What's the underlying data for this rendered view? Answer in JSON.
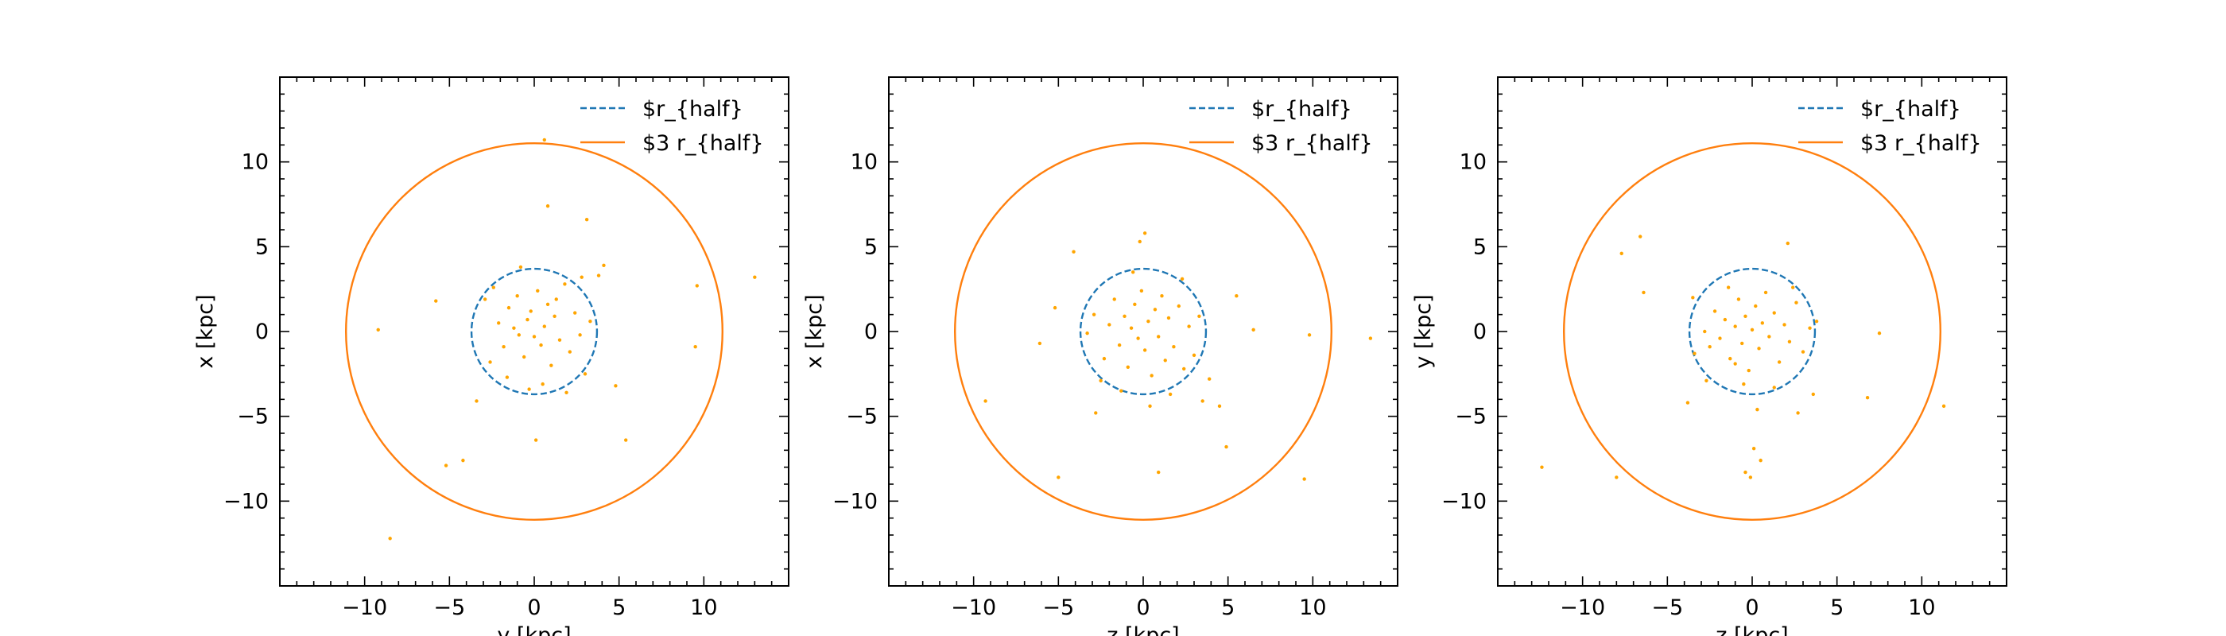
{
  "chart_data": [
    {
      "type": "scatter",
      "title": "",
      "xlabel": "y [kpc]",
      "ylabel": "x [kpc]",
      "xlim": [
        -15,
        15
      ],
      "ylim": [
        -15,
        15
      ],
      "xticks": [
        -10,
        -5,
        0,
        5,
        10
      ],
      "yticks": [
        -10,
        -5,
        0,
        5,
        10
      ],
      "xtick_labels": [
        "−10",
        "−5",
        "0",
        "5",
        "10"
      ],
      "ytick_labels": [
        "−10",
        "−5",
        "0",
        "5",
        "10"
      ],
      "circles": [
        {
          "label": "$r_{half}",
          "radius": 3.7,
          "color": "#1f77b4",
          "style": "dashed"
        },
        {
          "label": "$3 r_{half}",
          "radius": 11.1,
          "color": "#ff7f0e",
          "style": "solid"
        }
      ],
      "legend": {
        "loc": "upper right",
        "entries": [
          "$r_{half}",
          "$3 r_{half}"
        ]
      },
      "points_color": "#ffa500",
      "points": [
        [
          -9.2,
          0.1
        ],
        [
          -5.8,
          1.8
        ],
        [
          -5.2,
          -7.9
        ],
        [
          -4.2,
          -7.6
        ],
        [
          -8.5,
          -12.2
        ],
        [
          -3.4,
          -4.1
        ],
        [
          -2.9,
          1.9
        ],
        [
          -2.4,
          2.6
        ],
        [
          -2.1,
          0.5
        ],
        [
          -1.8,
          -0.9
        ],
        [
          -1.5,
          1.4
        ],
        [
          -1.2,
          0.2
        ],
        [
          -1.0,
          2.1
        ],
        [
          -0.8,
          3.8
        ],
        [
          -0.6,
          -1.5
        ],
        [
          -0.4,
          0.7
        ],
        [
          -0.2,
          1.2
        ],
        [
          0.0,
          -0.3
        ],
        [
          0.2,
          2.4
        ],
        [
          0.4,
          -0.8
        ],
        [
          0.6,
          0.3
        ],
        [
          0.8,
          1.6
        ],
        [
          1.0,
          -2.0
        ],
        [
          1.2,
          0.9
        ],
        [
          1.5,
          -0.5
        ],
        [
          1.8,
          2.8
        ],
        [
          2.1,
          -1.2
        ],
        [
          2.4,
          1.1
        ],
        [
          2.8,
          3.2
        ],
        [
          3.0,
          -2.5
        ],
        [
          3.3,
          0.6
        ],
        [
          0.5,
          -3.1
        ],
        [
          -0.3,
          -3.4
        ],
        [
          0.1,
          -6.4
        ],
        [
          3.8,
          3.3
        ],
        [
          4.1,
          3.9
        ],
        [
          4.8,
          -3.2
        ],
        [
          5.4,
          -6.4
        ],
        [
          9.5,
          -0.9
        ],
        [
          9.6,
          2.7
        ],
        [
          13.0,
          3.2
        ],
        [
          0.6,
          11.3
        ],
        [
          0.8,
          7.4
        ],
        [
          3.1,
          6.6
        ],
        [
          -1.6,
          -2.7
        ],
        [
          1.9,
          -3.6
        ],
        [
          -2.6,
          -1.8
        ],
        [
          2.7,
          -0.2
        ],
        [
          -0.9,
          -0.2
        ],
        [
          1.3,
          1.9
        ]
      ]
    },
    {
      "type": "scatter",
      "title": "",
      "xlabel": "z [kpc]",
      "ylabel": "x [kpc]",
      "xlim": [
        -15,
        15
      ],
      "ylim": [
        -15,
        15
      ],
      "xticks": [
        -10,
        -5,
        0,
        5,
        10
      ],
      "yticks": [
        -10,
        -5,
        0,
        5,
        10
      ],
      "xtick_labels": [
        "−10",
        "−5",
        "0",
        "5",
        "10"
      ],
      "ytick_labels": [
        "−10",
        "−5",
        "0",
        "5",
        "10"
      ],
      "circles": [
        {
          "label": "$r_{half}",
          "radius": 3.7,
          "color": "#1f77b4",
          "style": "dashed"
        },
        {
          "label": "$3 r_{half}",
          "radius": 11.1,
          "color": "#ff7f0e",
          "style": "solid"
        }
      ],
      "legend": {
        "loc": "upper right",
        "entries": [
          "$r_{half}",
          "$3 r_{half}"
        ]
      },
      "points_color": "#ffa500",
      "points": [
        [
          -9.3,
          -4.1
        ],
        [
          -6.1,
          -0.7
        ],
        [
          -5.2,
          1.4
        ],
        [
          -5.0,
          -8.6
        ],
        [
          -4.1,
          4.7
        ],
        [
          -2.8,
          -4.8
        ],
        [
          -2.9,
          1.0
        ],
        [
          -2.3,
          -1.6
        ],
        [
          -2.0,
          0.4
        ],
        [
          -1.7,
          1.9
        ],
        [
          -1.4,
          -0.8
        ],
        [
          -1.1,
          0.9
        ],
        [
          -0.9,
          -2.1
        ],
        [
          -0.7,
          0.2
        ],
        [
          -0.5,
          1.6
        ],
        [
          -0.3,
          -0.4
        ],
        [
          -0.1,
          2.4
        ],
        [
          0.1,
          -1.1
        ],
        [
          0.3,
          0.6
        ],
        [
          0.5,
          -2.6
        ],
        [
          0.7,
          1.3
        ],
        [
          0.9,
          -0.3
        ],
        [
          1.1,
          2.1
        ],
        [
          1.3,
          -1.7
        ],
        [
          1.5,
          0.8
        ],
        [
          1.8,
          -0.9
        ],
        [
          2.1,
          1.5
        ],
        [
          2.4,
          -2.2
        ],
        [
          2.7,
          0.3
        ],
        [
          3.0,
          -1.4
        ],
        [
          -0.2,
          5.3
        ],
        [
          0.1,
          5.8
        ],
        [
          0.9,
          -8.3
        ],
        [
          3.5,
          -4.1
        ],
        [
          3.9,
          -2.8
        ],
        [
          4.5,
          -4.4
        ],
        [
          4.9,
          -6.8
        ],
        [
          5.5,
          2.1
        ],
        [
          6.5,
          0.1
        ],
        [
          9.5,
          -8.7
        ],
        [
          9.8,
          -0.2
        ],
        [
          13.4,
          -0.4
        ],
        [
          -1.3,
          -3.5
        ],
        [
          1.6,
          -3.7
        ],
        [
          -2.5,
          -2.9
        ],
        [
          2.3,
          3.1
        ],
        [
          -0.6,
          3.5
        ],
        [
          0.4,
          -4.4
        ],
        [
          -3.3,
          -0.1
        ],
        [
          3.3,
          0.9
        ]
      ]
    },
    {
      "type": "scatter",
      "title": "",
      "xlabel": "z [kpc]",
      "ylabel": "y [kpc]",
      "xlim": [
        -15,
        15
      ],
      "ylim": [
        -15,
        15
      ],
      "xticks": [
        -10,
        -5,
        0,
        5,
        10
      ],
      "yticks": [
        -10,
        -5,
        0,
        5,
        10
      ],
      "xtick_labels": [
        "−10",
        "−5",
        "0",
        "5",
        "10"
      ],
      "ytick_labels": [
        "−10",
        "−5",
        "0",
        "5",
        "10"
      ],
      "circles": [
        {
          "label": "$r_{half}",
          "radius": 3.7,
          "color": "#1f77b4",
          "style": "dashed"
        },
        {
          "label": "$3 r_{half}",
          "radius": 11.1,
          "color": "#ff7f0e",
          "style": "solid"
        }
      ],
      "legend": {
        "loc": "upper right",
        "entries": [
          "$r_{half}",
          "$3 r_{half}"
        ]
      },
      "points_color": "#ffa500",
      "points": [
        [
          -12.4,
          -8.0
        ],
        [
          -8.0,
          -8.6
        ],
        [
          -7.7,
          4.6
        ],
        [
          -6.6,
          5.6
        ],
        [
          -6.4,
          2.3
        ],
        [
          -3.8,
          -4.2
        ],
        [
          -3.4,
          -1.3
        ],
        [
          -2.8,
          0.0
        ],
        [
          -2.5,
          -0.9
        ],
        [
          -2.2,
          1.2
        ],
        [
          -1.9,
          -0.4
        ],
        [
          -1.6,
          0.7
        ],
        [
          -1.3,
          -1.6
        ],
        [
          -1.0,
          0.3
        ],
        [
          -0.8,
          1.9
        ],
        [
          -0.6,
          -0.7
        ],
        [
          -0.4,
          0.9
        ],
        [
          -0.2,
          -2.3
        ],
        [
          0.0,
          0.1
        ],
        [
          0.2,
          1.5
        ],
        [
          0.4,
          -1.0
        ],
        [
          0.6,
          0.5
        ],
        [
          0.8,
          2.3
        ],
        [
          1.0,
          -0.3
        ],
        [
          1.3,
          1.1
        ],
        [
          1.6,
          -1.8
        ],
        [
          1.9,
          0.4
        ],
        [
          2.2,
          -0.6
        ],
        [
          2.6,
          1.7
        ],
        [
          3.0,
          -1.2
        ],
        [
          3.4,
          0.2
        ],
        [
          3.8,
          0.6
        ],
        [
          -0.4,
          -8.3
        ],
        [
          -0.1,
          -8.6
        ],
        [
          0.1,
          -6.9
        ],
        [
          0.5,
          -7.6
        ],
        [
          2.7,
          -4.8
        ],
        [
          3.6,
          -3.7
        ],
        [
          6.8,
          -3.9
        ],
        [
          7.5,
          -0.1
        ],
        [
          11.3,
          -4.4
        ],
        [
          -1.4,
          2.6
        ],
        [
          2.1,
          5.2
        ],
        [
          -0.5,
          -3.1
        ],
        [
          1.3,
          -3.3
        ],
        [
          -3.5,
          2.0
        ],
        [
          0.3,
          -4.6
        ],
        [
          -2.7,
          -2.9
        ],
        [
          2.4,
          2.6
        ],
        [
          -1.0,
          -1.9
        ]
      ]
    }
  ]
}
